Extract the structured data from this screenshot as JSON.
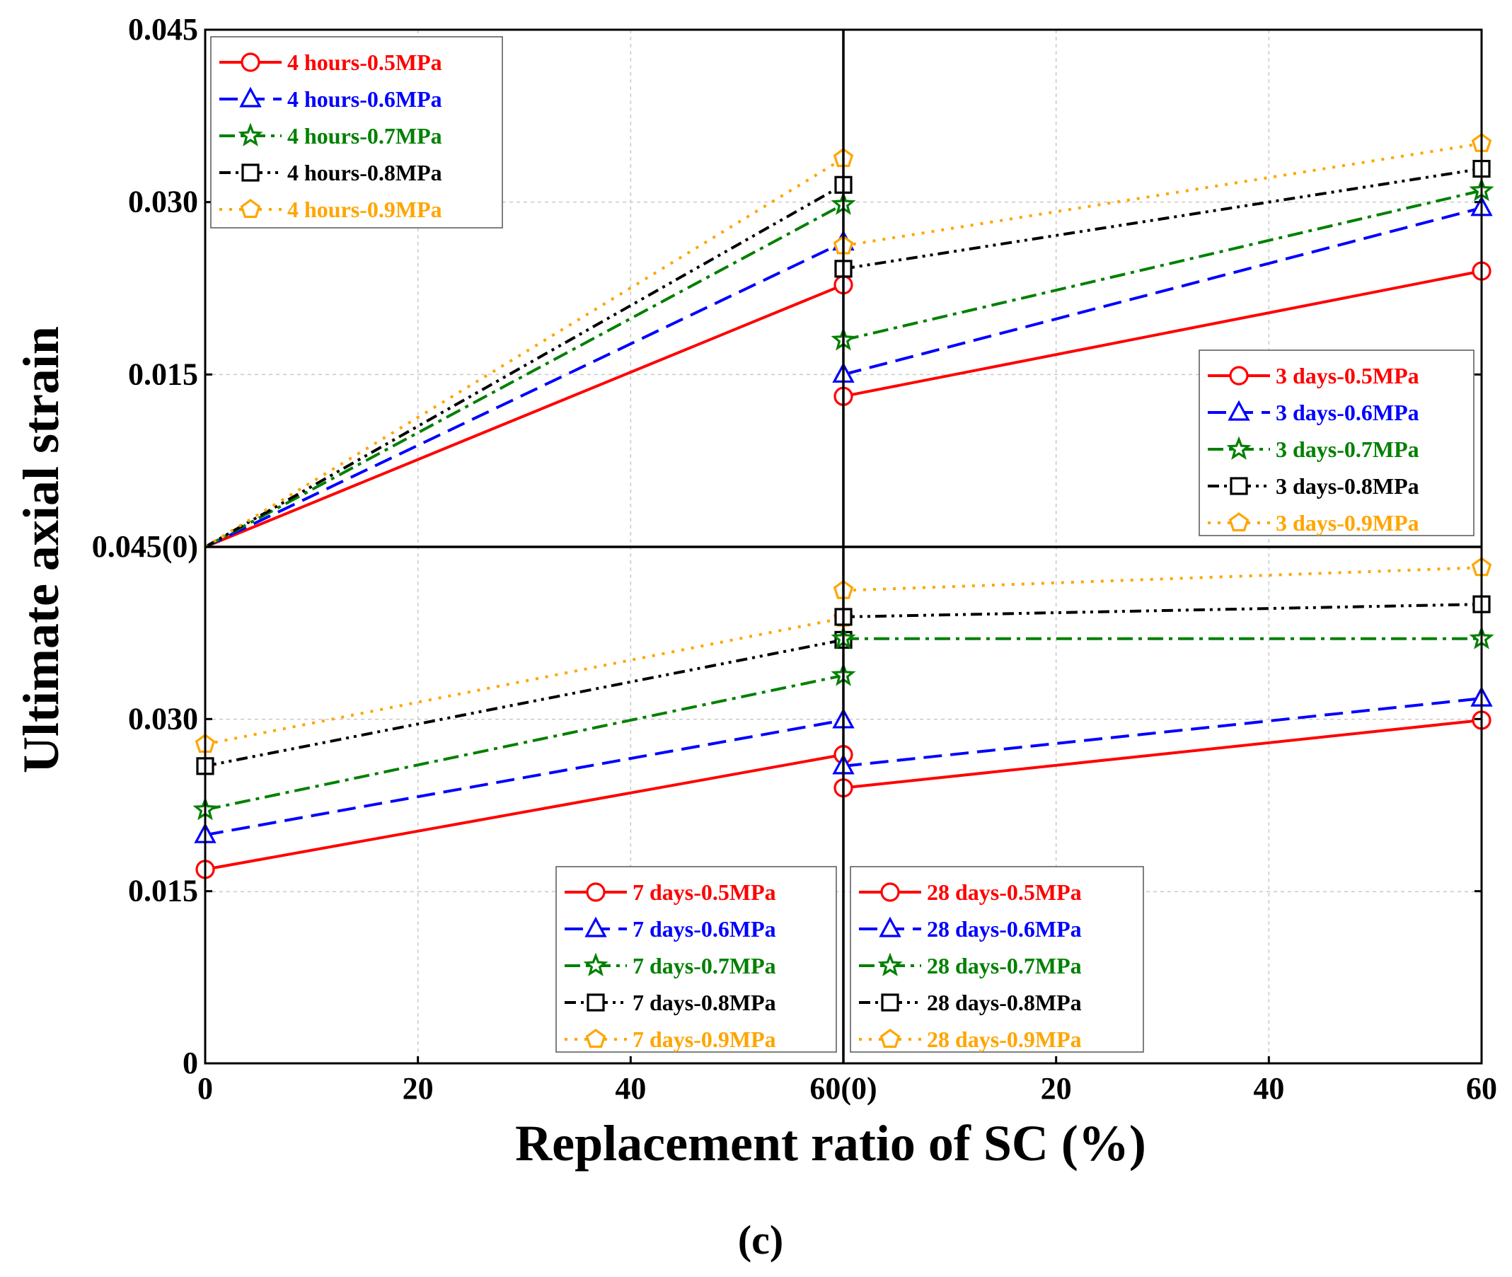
{
  "colors": {
    "0.5MPa": "#ff0000",
    "0.6MPa": "#0000ff",
    "0.7MPa": "#008000",
    "0.8MPa": "#000000",
    "0.9MPa": "#ffa500"
  },
  "chart_data": {
    "type": "line",
    "xlabel": "Replacement ratio of SC (%)",
    "ylabel": "Ultimate axial strain",
    "caption": "(c)",
    "x_tick_labels": [
      "0",
      "20",
      "40",
      "60(0)",
      "20",
      "40",
      "60"
    ],
    "y_tick_labels_top": [
      "0.045(0)",
      "0.015",
      "0.030",
      "0.045"
    ],
    "y_tick_labels_bottom": [
      "0",
      "0.015",
      "0.030"
    ],
    "panels": [
      {
        "name": "top-left",
        "xlim": [
          0,
          60
        ],
        "ylim": [
          0,
          0.045
        ],
        "legend_position": "top-left",
        "series": [
          {
            "name": "4 hours-0.5MPa",
            "pressure": "0.5MPa",
            "marker": "circle",
            "dash": "solid",
            "x": [
              0,
              60
            ],
            "y": [
              0,
              0.0228
            ]
          },
          {
            "name": "4 hours-0.6MPa",
            "pressure": "0.6MPa",
            "marker": "triangle",
            "dash": "dash",
            "x": [
              0,
              60
            ],
            "y": [
              0,
              0.0265
            ]
          },
          {
            "name": "4 hours-0.7MPa",
            "pressure": "0.7MPa",
            "marker": "star",
            "dash": "dashdot",
            "x": [
              0,
              60
            ],
            "y": [
              0,
              0.0298
            ]
          },
          {
            "name": "4 hours-0.8MPa",
            "pressure": "0.8MPa",
            "marker": "square",
            "dash": "dashdotdot",
            "x": [
              0,
              60
            ],
            "y": [
              0,
              0.0315
            ]
          },
          {
            "name": "4 hours-0.9MPa",
            "pressure": "0.9MPa",
            "marker": "pentagon",
            "dash": "dot",
            "x": [
              0,
              60
            ],
            "y": [
              0,
              0.0338
            ]
          }
        ]
      },
      {
        "name": "top-right",
        "xlim": [
          0,
          60
        ],
        "ylim": [
          0,
          0.045
        ],
        "legend_position": "bottom-right",
        "series": [
          {
            "name": "3 days-0.5MPa",
            "pressure": "0.5MPa",
            "marker": "circle",
            "dash": "solid",
            "x": [
              0,
              60
            ],
            "y": [
              0.0131,
              0.024
            ]
          },
          {
            "name": "3 days-0.6MPa",
            "pressure": "0.6MPa",
            "marker": "triangle",
            "dash": "dash",
            "x": [
              0,
              60
            ],
            "y": [
              0.015,
              0.0295
            ]
          },
          {
            "name": "3 days-0.7MPa",
            "pressure": "0.7MPa",
            "marker": "star",
            "dash": "dashdot",
            "x": [
              0,
              60
            ],
            "y": [
              0.018,
              0.031
            ]
          },
          {
            "name": "3 days-0.8MPa",
            "pressure": "0.8MPa",
            "marker": "square",
            "dash": "dashdotdot",
            "x": [
              0,
              60
            ],
            "y": [
              0.0242,
              0.0329
            ]
          },
          {
            "name": "3 days-0.9MPa",
            "pressure": "0.9MPa",
            "marker": "pentagon",
            "dash": "dot",
            "x": [
              0,
              60
            ],
            "y": [
              0.0262,
              0.0351
            ]
          }
        ]
      },
      {
        "name": "bottom-left",
        "xlim": [
          0,
          60
        ],
        "ylim": [
          0,
          0.045
        ],
        "legend_position": "bottom-right",
        "series": [
          {
            "name": "7 days-0.5MPa",
            "pressure": "0.5MPa",
            "marker": "circle",
            "dash": "solid",
            "x": [
              0,
              60
            ],
            "y": [
              0.0169,
              0.0269
            ]
          },
          {
            "name": "7 days-0.6MPa",
            "pressure": "0.6MPa",
            "marker": "triangle",
            "dash": "dash",
            "x": [
              0,
              60
            ],
            "y": [
              0.0199,
              0.0299
            ]
          },
          {
            "name": "7 days-0.7MPa",
            "pressure": "0.7MPa",
            "marker": "star",
            "dash": "dashdot",
            "x": [
              0,
              60
            ],
            "y": [
              0.0221,
              0.0338
            ]
          },
          {
            "name": "7 days-0.8MPa",
            "pressure": "0.8MPa",
            "marker": "square",
            "dash": "dashdotdot",
            "x": [
              0,
              60
            ],
            "y": [
              0.0259,
              0.0369
            ]
          },
          {
            "name": "7 days-0.9MPa",
            "pressure": "0.9MPa",
            "marker": "pentagon",
            "dash": "dot",
            "x": [
              0,
              60
            ],
            "y": [
              0.0278,
              0.0388
            ]
          }
        ]
      },
      {
        "name": "bottom-right",
        "xlim": [
          0,
          60
        ],
        "ylim": [
          0,
          0.045
        ],
        "legend_position": "bottom-left",
        "series": [
          {
            "name": "28 days-0.5MPa",
            "pressure": "0.5MPa",
            "marker": "circle",
            "dash": "solid",
            "x": [
              0,
              60
            ],
            "y": [
              0.024,
              0.0299
            ]
          },
          {
            "name": "28 days-0.6MPa",
            "pressure": "0.6MPa",
            "marker": "triangle",
            "dash": "dash",
            "x": [
              0,
              60
            ],
            "y": [
              0.0259,
              0.0318
            ]
          },
          {
            "name": "28 days-0.7MPa",
            "pressure": "0.7MPa",
            "marker": "star",
            "dash": "dashdot",
            "x": [
              0,
              60
            ],
            "y": [
              0.037,
              0.037
            ]
          },
          {
            "name": "28 days-0.8MPa",
            "pressure": "0.8MPa",
            "marker": "square",
            "dash": "dashdotdot",
            "x": [
              0,
              60
            ],
            "y": [
              0.0389,
              0.04
            ]
          },
          {
            "name": "28 days-0.9MPa",
            "pressure": "0.9MPa",
            "marker": "pentagon",
            "dash": "dot",
            "x": [
              0,
              60
            ],
            "y": [
              0.0412,
              0.0432
            ]
          }
        ]
      }
    ]
  }
}
